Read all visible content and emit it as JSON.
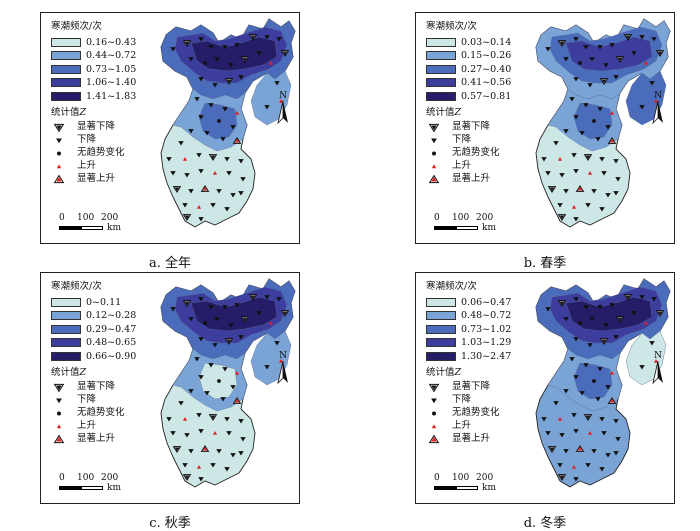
{
  "z_title": "统计值",
  "z_var": "Z",
  "trend_symbols": [
    {
      "name": "sig-decrease",
      "label": "显著下降"
    },
    {
      "name": "decrease",
      "label": "下降"
    },
    {
      "name": "no-trend",
      "label": "无趋势变化"
    },
    {
      "name": "increase",
      "label": "上升"
    },
    {
      "name": "sig-increase",
      "label": "显著上升"
    }
  ],
  "scale": {
    "ticks": [
      "0",
      "100",
      "200"
    ],
    "unit": "km"
  },
  "north_label": "N",
  "colors": {
    "class_ramp": [
      "#cde7e6",
      "#7ba4d6",
      "#4a6cba",
      "#3d3d9e",
      "#251d68"
    ],
    "symbol_dark": "#111111",
    "symbol_red": "#e02020",
    "outline": "#222222"
  },
  "panels": [
    {
      "id": "a",
      "caption": "a. 全年",
      "legend_title": "寒潮频次/次",
      "classes": [
        "0.16~0.43",
        "0.44~0.72",
        "0.73~1.05",
        "1.06~1.40",
        "1.41~1.83"
      ]
    },
    {
      "id": "b",
      "caption": "b. 春季",
      "legend_title": "寒潮频次/次",
      "classes": [
        "0.03~0.14",
        "0.15~0.26",
        "0.27~0.40",
        "0.41~0.56",
        "0.57~0.81"
      ]
    },
    {
      "id": "c",
      "caption": "c. 秋季",
      "legend_title": "寒潮频次/次",
      "classes": [
        "0~0.11",
        "0.12~0.28",
        "0.29~0.47",
        "0.48~0.65",
        "0.66~0.90"
      ]
    },
    {
      "id": "d",
      "caption": "d. 冬季",
      "legend_title": "寒潮频次/次",
      "classes": [
        "0.06~0.47",
        "0.48~0.72",
        "0.73~1.02",
        "1.03~1.29",
        "1.30~2.47"
      ]
    }
  ]
}
